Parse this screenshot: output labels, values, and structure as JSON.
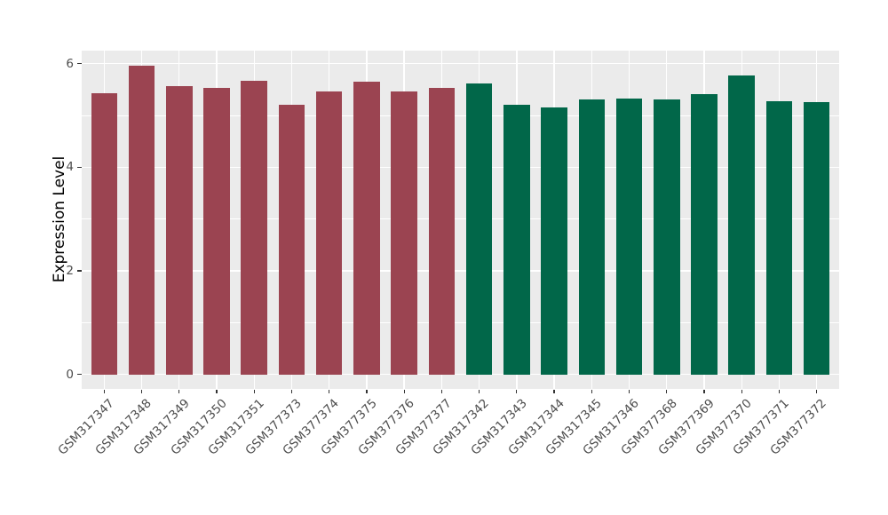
{
  "chart_data": {
    "type": "bar",
    "title": "",
    "xlabel": "",
    "ylabel": "Expression Level",
    "legend_position": "none",
    "grid": true,
    "panel_bg": "#EBEBEB",
    "grid_color": "#FFFFFF",
    "axis_text_color": "#4D4D4D",
    "tick_color": "#333333",
    "categories": [
      "GSM317347",
      "GSM317348",
      "GSM317349",
      "GSM317350",
      "GSM317351",
      "GSM377373",
      "GSM377374",
      "GSM377375",
      "GSM377376",
      "GSM377377",
      "GSM317342",
      "GSM317343",
      "GSM317344",
      "GSM317345",
      "GSM317346",
      "GSM377368",
      "GSM377369",
      "GSM377370",
      "GSM377371",
      "GSM377372"
    ],
    "values": [
      5.42,
      5.96,
      5.57,
      5.53,
      5.67,
      5.21,
      5.47,
      5.65,
      5.47,
      5.53,
      5.61,
      5.2,
      5.15,
      5.31,
      5.33,
      5.3,
      5.41,
      5.77,
      5.28,
      5.25
    ],
    "bar_colors": [
      "#9B4451",
      "#9B4451",
      "#9B4451",
      "#9B4451",
      "#9B4451",
      "#9B4451",
      "#9B4451",
      "#9B4451",
      "#9B4451",
      "#9B4451",
      "#016749",
      "#016749",
      "#016749",
      "#016749",
      "#016749",
      "#016749",
      "#016749",
      "#016749",
      "#016749",
      "#016749"
    ],
    "ytick_labels": [
      "0",
      "2",
      "4",
      "6"
    ],
    "ytick_values": [
      0,
      2,
      4,
      6
    ],
    "minor_ytick_values": [
      1,
      3,
      5
    ],
    "ylim": [
      -0.28,
      6.25
    ],
    "bar_width_fraction": 0.7,
    "x_label_angle_deg": 45
  }
}
